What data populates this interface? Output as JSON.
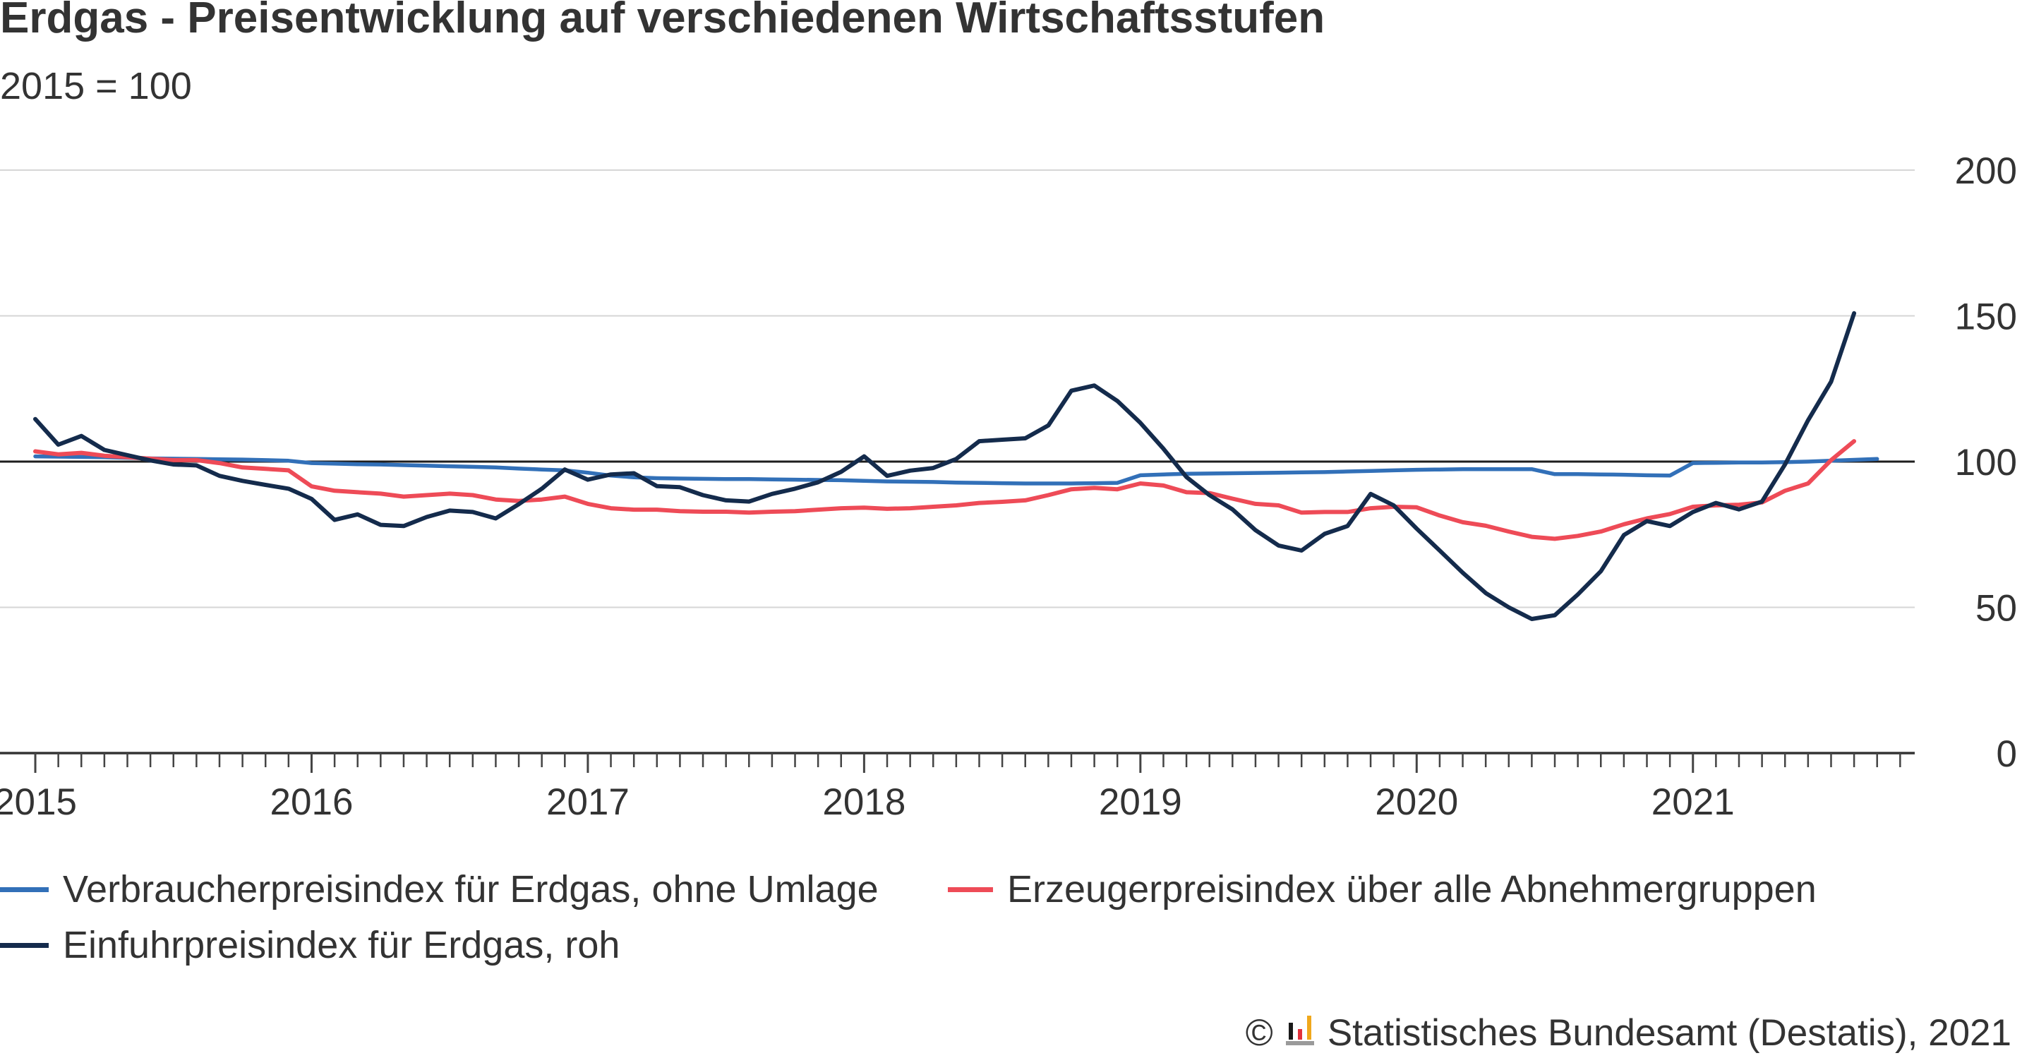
{
  "chart_data": {
    "type": "line",
    "title": "Erdgas - Preisentwicklung auf verschiedenen Wirtschaftsstufen",
    "subtitle": "2015 = 100",
    "x": [
      "2015-01",
      "2015-02",
      "2015-03",
      "2015-04",
      "2015-05",
      "2015-06",
      "2015-07",
      "2015-08",
      "2015-09",
      "2015-10",
      "2015-11",
      "2015-12",
      "2016-01",
      "2016-02",
      "2016-03",
      "2016-04",
      "2016-05",
      "2016-06",
      "2016-07",
      "2016-08",
      "2016-09",
      "2016-10",
      "2016-11",
      "2016-12",
      "2017-01",
      "2017-02",
      "2017-03",
      "2017-04",
      "2017-05",
      "2017-06",
      "2017-07",
      "2017-08",
      "2017-09",
      "2017-10",
      "2017-11",
      "2017-12",
      "2018-01",
      "2018-02",
      "2018-03",
      "2018-04",
      "2018-05",
      "2018-06",
      "2018-07",
      "2018-08",
      "2018-09",
      "2018-10",
      "2018-11",
      "2018-12",
      "2019-01",
      "2019-02",
      "2019-03",
      "2019-04",
      "2019-05",
      "2019-06",
      "2019-07",
      "2019-08",
      "2019-09",
      "2019-10",
      "2019-11",
      "2019-12",
      "2020-01",
      "2020-02",
      "2020-03",
      "2020-04",
      "2020-05",
      "2020-06",
      "2020-07",
      "2020-08",
      "2020-09",
      "2020-10",
      "2020-11",
      "2020-12",
      "2021-01",
      "2021-02",
      "2021-03",
      "2021-04",
      "2021-05",
      "2021-06",
      "2021-07",
      "2021-08",
      "2021-09"
    ],
    "xlim": [
      "2014-11-15",
      "2021-10-20"
    ],
    "x_tick_labels": [
      "2015",
      "2016",
      "2017",
      "2018",
      "2019",
      "2020",
      "2021"
    ],
    "ylim": [
      0,
      200
    ],
    "y_ticks": [
      0,
      50,
      100,
      150,
      200
    ],
    "y_axis_side": "right",
    "reference_line": 100,
    "grid": "horizontal",
    "legend_position": "bottom",
    "series": [
      {
        "name": "Verbraucherpreisindex für Erdgas, ohne Umlage",
        "color": "#3270b8",
        "values": [
          101.8,
          101.7,
          101.6,
          101.5,
          101.3,
          101.1,
          101.0,
          100.9,
          100.8,
          100.7,
          100.5,
          100.3,
          99.5,
          99.3,
          99.1,
          99.0,
          98.8,
          98.6,
          98.4,
          98.2,
          98.0,
          97.6,
          97.3,
          97.0,
          96.2,
          95.2,
          94.6,
          94.3,
          94.2,
          94.1,
          94.0,
          94.0,
          93.9,
          93.8,
          93.7,
          93.6,
          93.4,
          93.2,
          93.1,
          93.0,
          92.8,
          92.7,
          92.6,
          92.5,
          92.5,
          92.5,
          92.6,
          92.7,
          95.3,
          95.6,
          95.8,
          95.9,
          96.0,
          96.1,
          96.2,
          96.3,
          96.4,
          96.6,
          96.8,
          97.0,
          97.2,
          97.3,
          97.4,
          97.4,
          97.4,
          97.4,
          95.7,
          95.7,
          95.6,
          95.5,
          95.3,
          95.2,
          99.5,
          99.6,
          99.7,
          99.7,
          99.8,
          100.0,
          100.3,
          100.6,
          100.9
        ]
      },
      {
        "name": "Erzeugerpreisindex über alle Abnehmergruppen",
        "color": "#ee4b57",
        "values": [
          103.5,
          102.5,
          103.0,
          102.0,
          101.5,
          101.0,
          100.5,
          100.5,
          99.5,
          98.0,
          97.5,
          97.0,
          91.5,
          90.0,
          89.5,
          89.0,
          88.0,
          88.5,
          89.0,
          88.5,
          87.0,
          86.5,
          87.0,
          88.0,
          85.5,
          84.0,
          83.5,
          83.5,
          83.0,
          82.8,
          82.8,
          82.5,
          82.8,
          83.0,
          83.5,
          84.0,
          84.2,
          83.8,
          84.0,
          84.5,
          85.0,
          85.8,
          86.2,
          86.7,
          88.5,
          90.5,
          91.0,
          90.5,
          92.5,
          91.8,
          89.5,
          89.2,
          87.3,
          85.5,
          85.0,
          82.5,
          82.7,
          82.7,
          84.0,
          84.5,
          84.3,
          81.5,
          79.2,
          78.0,
          76.0,
          74.2,
          73.5,
          74.5,
          76.0,
          78.5,
          80.5,
          82.0,
          84.5,
          85.0,
          85.2,
          86.0,
          90.0,
          92.5,
          100.5,
          107.0,
          null
        ]
      },
      {
        "name": "Einfuhrpreisindex für Erdgas, roh",
        "color": "#142b4c",
        "values": [
          114.6,
          105.8,
          108.8,
          104.0,
          102.2,
          100.4,
          99.0,
          98.7,
          95.1,
          93.4,
          92.0,
          90.7,
          87.2,
          80.0,
          81.9,
          78.3,
          77.9,
          81.0,
          83.2,
          82.7,
          80.5,
          85.4,
          90.7,
          97.3,
          93.8,
          95.6,
          96.0,
          91.6,
          91.2,
          88.5,
          86.7,
          86.3,
          88.9,
          90.7,
          92.9,
          96.5,
          101.8,
          95.1,
          96.9,
          97.8,
          100.9,
          107.0,
          107.5,
          108.0,
          112.4,
          124.3,
          126.1,
          120.8,
          113.3,
          104.4,
          94.7,
          88.5,
          83.6,
          76.5,
          71.2,
          69.5,
          75.2,
          77.9,
          88.9,
          85.0,
          77.0,
          69.5,
          61.9,
          54.9,
          50.0,
          46.0,
          47.3,
          54.4,
          62.4,
          74.8,
          79.6,
          77.9,
          82.7,
          85.8,
          83.6,
          86.3,
          99.0,
          114.2,
          127.4,
          150.9,
          null
        ]
      }
    ]
  },
  "footer": {
    "copyright": "©",
    "logo_icon": "destatis-logo-icon",
    "source": "Statistisches Bundesamt (Destatis), 2021"
  }
}
